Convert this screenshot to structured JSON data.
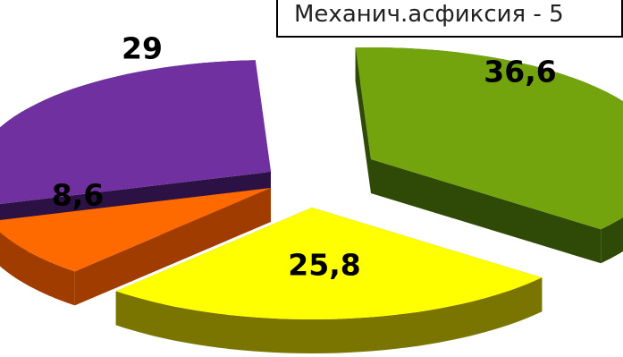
{
  "chart_data": {
    "type": "pie",
    "title": "",
    "style": "3d-exploded",
    "legend": "top-right",
    "legend_fragment": "Механич.асфиксия - 5",
    "slices": [
      {
        "label": "36,6",
        "value": 36.6,
        "color": "#73A40D",
        "side_color": "#2F4A06"
      },
      {
        "label": "25,8",
        "value": 25.8,
        "color": "#FFFF00",
        "side_color": "#7A7400"
      },
      {
        "label": "8,6",
        "value": 8.6,
        "color": "#FF6A00",
        "side_color": "#A03C00"
      },
      {
        "label": "29",
        "value": 29,
        "color": "#7030A0",
        "side_color": "#2B1144"
      }
    ]
  }
}
